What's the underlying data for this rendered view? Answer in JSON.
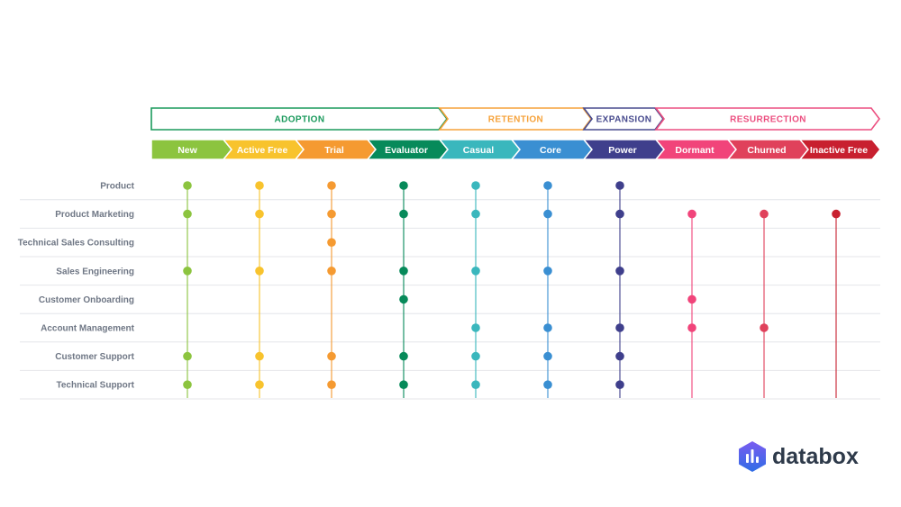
{
  "phases": [
    {
      "name": "ADOPTION",
      "color": "#1a9a5c",
      "from": 0,
      "to": 3
    },
    {
      "name": "RETENTION",
      "color": "#f6a23a",
      "from": 4,
      "to": 5
    },
    {
      "name": "EXPANSION",
      "color": "#484b8e",
      "from": 6,
      "to": 6
    },
    {
      "name": "RESURRECTION",
      "color": "#ec4f80",
      "from": 7,
      "to": 9
    }
  ],
  "stages": [
    {
      "name": "New",
      "color": "#8cc43f"
    },
    {
      "name": "Active Free",
      "color": "#f8c32d"
    },
    {
      "name": "Trial",
      "color": "#f59a31"
    },
    {
      "name": "Evaluator",
      "color": "#078a5a"
    },
    {
      "name": "Casual",
      "color": "#3ab7bd"
    },
    {
      "name": "Core",
      "color": "#3a8fd2"
    },
    {
      "name": "Power",
      "color": "#3f3f8c"
    },
    {
      "name": "Dormant",
      "color": "#f1447a"
    },
    {
      "name": "Churned",
      "color": "#e0415b"
    },
    {
      "name": "Inactive Free",
      "color": "#c8202f"
    }
  ],
  "teams": [
    {
      "name": "Product",
      "stages": [
        0,
        1,
        2,
        3,
        4,
        5,
        6
      ]
    },
    {
      "name": "Product Marketing",
      "stages": [
        0,
        1,
        2,
        3,
        4,
        5,
        6,
        7,
        8,
        9
      ]
    },
    {
      "name": "Technical Sales Consulting",
      "stages": [
        2
      ]
    },
    {
      "name": "Sales Engineering",
      "stages": [
        0,
        1,
        2,
        3,
        4,
        5,
        6
      ]
    },
    {
      "name": "Customer Onboarding",
      "stages": [
        3,
        7
      ]
    },
    {
      "name": "Account Management",
      "stages": [
        4,
        5,
        6,
        7,
        8
      ]
    },
    {
      "name": "Customer Support",
      "stages": [
        0,
        1,
        2,
        3,
        4,
        5,
        6
      ]
    },
    {
      "name": "Technical Support",
      "stages": [
        0,
        1,
        2,
        3,
        4,
        5,
        6
      ]
    }
  ],
  "brand": {
    "name": "databox",
    "logo_icon": "databox-logo-icon",
    "logo_color_top": "#7a5cf0",
    "logo_color_bottom": "#2f6de6"
  }
}
